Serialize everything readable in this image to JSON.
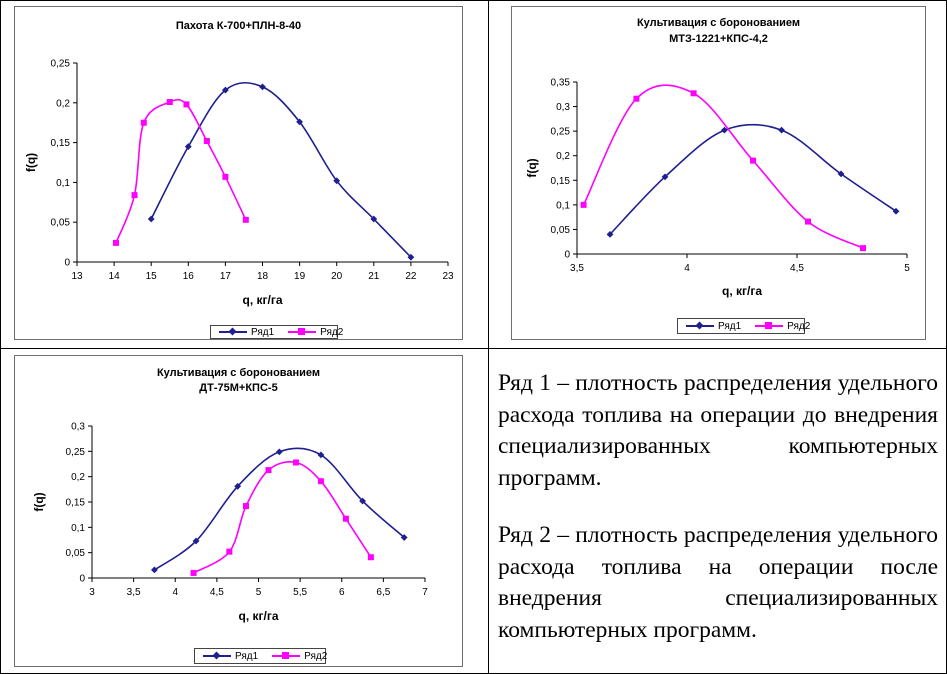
{
  "notes": {
    "row1": "Ряд 1 – плотность распределения удельного расхода топлива на операции до внедрения специализированных компьютерных программ.",
    "row2": "Ряд 2 – плотность распределения удельного расхода топлива на операции после внедрения специализированных компьютерных программ."
  },
  "colors": {
    "series1": "#1f1f8f",
    "series2": "#ff00ff"
  },
  "chart_data": [
    {
      "type": "line",
      "title": [
        "Пахота К-700+ПЛН-8-40"
      ],
      "xlabel": "q, кг/га",
      "ylabel": "f(q)",
      "xlim": [
        13,
        23
      ],
      "ylim": [
        0,
        0.25
      ],
      "xticks": [
        13,
        14,
        15,
        16,
        17,
        18,
        19,
        20,
        21,
        22,
        23
      ],
      "xtick_labels": [
        "13",
        "14",
        "15",
        "16",
        "17",
        "18",
        "19",
        "20",
        "21",
        "22",
        "23"
      ],
      "yticks": [
        0,
        0.05,
        0.1,
        0.15,
        0.2,
        0.25
      ],
      "ytick_labels": [
        "0",
        "0,05",
        "0,1",
        "0,15",
        "0,2",
        "0,25"
      ],
      "legend": "bottom",
      "series": [
        {
          "name": "Ряд1",
          "marker": "diamond",
          "x": [
            15,
            16,
            17,
            18,
            19,
            20,
            21,
            22
          ],
          "y": [
            0.054,
            0.145,
            0.216,
            0.22,
            0.176,
            0.102,
            0.054,
            0.006
          ]
        },
        {
          "name": "Ряд2",
          "marker": "square",
          "x": [
            14.05,
            14.55,
            14.8,
            15.5,
            15.95,
            16.5,
            17,
            17.55
          ],
          "y": [
            0.024,
            0.084,
            0.175,
            0.201,
            0.198,
            0.152,
            0.107,
            0.053
          ]
        }
      ]
    },
    {
      "type": "line",
      "title": [
        "Культивация с боронованием",
        "МТЗ-1221+КПС-4,2"
      ],
      "xlabel": "q, кг/га",
      "ylabel": "f(q)",
      "xlim": [
        3.5,
        5
      ],
      "ylim": [
        0,
        0.35
      ],
      "xticks": [
        3.5,
        4,
        4.5,
        5
      ],
      "xtick_labels": [
        "3,5",
        "4",
        "4,5",
        "5"
      ],
      "yticks": [
        0,
        0.05,
        0.1,
        0.15,
        0.2,
        0.25,
        0.3,
        0.35
      ],
      "ytick_labels": [
        "0",
        "0,05",
        "0,1",
        "0,15",
        "0,2",
        "0,25",
        "0,3",
        "0,35"
      ],
      "legend": "bottom",
      "series": [
        {
          "name": "Ряд1",
          "marker": "diamond",
          "x": [
            3.65,
            3.9,
            4.17,
            4.43,
            4.7,
            4.95
          ],
          "y": [
            0.04,
            0.157,
            0.252,
            0.252,
            0.163,
            0.087
          ]
        },
        {
          "name": "Ряд2",
          "marker": "square",
          "x": [
            3.53,
            3.77,
            4.03,
            4.3,
            4.55,
            4.8
          ],
          "y": [
            0.1,
            0.316,
            0.327,
            0.19,
            0.066,
            0.012
          ]
        }
      ]
    },
    {
      "type": "line",
      "title": [
        "Культивация с боронованием",
        "ДТ-75М+КПС-5"
      ],
      "xlabel": "q, кг/га",
      "ylabel": "f(q)",
      "xlim": [
        3,
        7
      ],
      "ylim": [
        0,
        0.3
      ],
      "xticks": [
        3,
        3.5,
        4,
        4.5,
        5,
        5.5,
        6,
        6.5,
        7
      ],
      "xtick_labels": [
        "3",
        "3,5",
        "4",
        "4,5",
        "5",
        "5,5",
        "6",
        "6,5",
        "7"
      ],
      "yticks": [
        0,
        0.05,
        0.1,
        0.15,
        0.2,
        0.25,
        0.3
      ],
      "ytick_labels": [
        "0",
        "0,05",
        "0,1",
        "0,15",
        "0,2",
        "0,25",
        "0,3"
      ],
      "legend": "bottom",
      "series": [
        {
          "name": "Ряд1",
          "marker": "diamond",
          "x": [
            3.75,
            4.25,
            4.75,
            5.25,
            5.75,
            6.25,
            6.75
          ],
          "y": [
            0.016,
            0.073,
            0.181,
            0.249,
            0.243,
            0.152,
            0.08
          ]
        },
        {
          "name": "Ряд2",
          "marker": "square",
          "x": [
            4.22,
            4.65,
            4.85,
            5.12,
            5.45,
            5.75,
            6.05,
            6.35
          ],
          "y": [
            0.01,
            0.052,
            0.142,
            0.213,
            0.228,
            0.191,
            0.117,
            0.041
          ]
        }
      ]
    }
  ]
}
